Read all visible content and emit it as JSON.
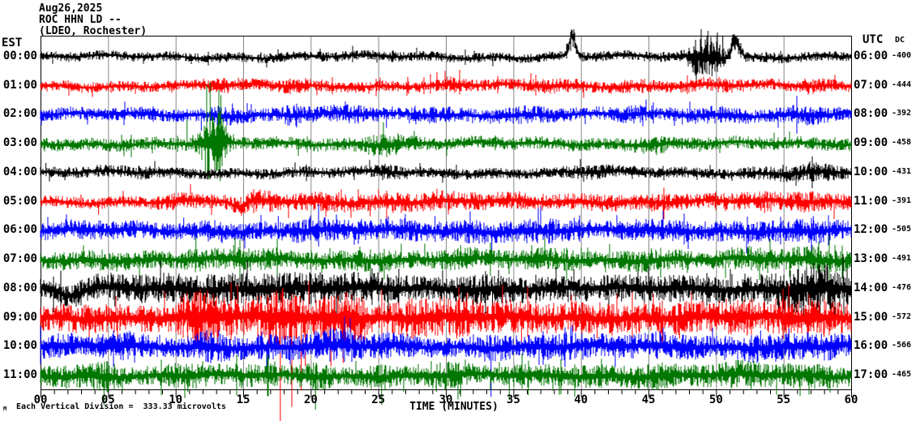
{
  "header": {
    "date": "Aug26,2025",
    "station": "ROC HHN LD --",
    "location": "(LDEO, Rochester)"
  },
  "axes": {
    "left_label": "EST",
    "right_label": "UTC",
    "dc_label": "DC",
    "x_title": "TIME (MINUTES)",
    "x_ticks": [
      "00",
      "05",
      "10",
      "15",
      "20",
      "25",
      "30",
      "35",
      "40",
      "45",
      "50",
      "55",
      "60"
    ]
  },
  "footer": {
    "scale_note": "Each Vertical Division =  333.33 microvolts",
    "corner_mark": "M"
  },
  "colors": {
    "trace_cycle": [
      "#000000",
      "#ff0000",
      "#0000ff",
      "#007700"
    ],
    "grid": "#888888",
    "frame": "#000000",
    "text": "#000000"
  },
  "chart_data": {
    "type": "line",
    "kind": "helicorder-seismogram",
    "title": "ROC HHN LD -- (LDEO, Rochester) Aug26,2025",
    "xlabel": "TIME (MINUTES)",
    "x_range_minutes": [
      0,
      60
    ],
    "minutes_per_row": 60,
    "vertical_division_microvolts": 333.33,
    "rows": [
      {
        "est": "00:00",
        "utc": "06:00",
        "dc": "-400",
        "color_index": 0,
        "base": 5,
        "seed": 11,
        "bursts": [
          [
            39.3,
            9,
            0.25
          ],
          [
            48.6,
            13,
            0.5
          ],
          [
            49.7,
            15,
            0.6
          ],
          [
            51.5,
            7,
            0.3
          ]
        ],
        "bumps": [
          [
            39.35,
            -26,
            0.22
          ],
          [
            51.45,
            -24,
            0.28
          ]
        ],
        "spikes": [
          [
            48.9,
            34,
            -1
          ],
          [
            49.4,
            32,
            -1
          ],
          [
            50.1,
            30,
            -1
          ],
          [
            49.7,
            24,
            1
          ],
          [
            50.5,
            26,
            -1
          ]
        ]
      },
      {
        "est": "01:00",
        "utc": "07:00",
        "dc": "-444",
        "color_index": 1,
        "base": 5.5,
        "seed": 22,
        "bursts": [
          [
            13.5,
            3,
            1
          ],
          [
            18.8,
            3,
            1.2
          ],
          [
            30.5,
            3,
            1
          ],
          [
            38,
            2.5,
            1.5
          ],
          [
            44,
            2.5,
            1
          ],
          [
            50,
            2.5,
            1.5
          ],
          [
            57,
            3,
            1
          ]
        ],
        "bumps": [],
        "spikes": [
          [
            2.1,
            12,
            1
          ],
          [
            24.3,
            10,
            1
          ]
        ]
      },
      {
        "est": "02:00",
        "utc": "08:00",
        "dc": "-392",
        "color_index": 2,
        "base": 6.5,
        "seed": 33,
        "bursts": [
          [
            13.6,
            4,
            0.8
          ],
          [
            18.7,
            4,
            0.9
          ],
          [
            23,
            3,
            1.5
          ],
          [
            29.5,
            3,
            1
          ],
          [
            36,
            3,
            1.5
          ],
          [
            44,
            3,
            1
          ],
          [
            50,
            3,
            1.5
          ],
          [
            56.5,
            4,
            1.2
          ]
        ],
        "bumps": [],
        "spikes": [
          [
            11.9,
            20,
            1
          ],
          [
            14.2,
            14,
            -1
          ],
          [
            25.6,
            16,
            1
          ],
          [
            47.5,
            12,
            1
          ]
        ]
      },
      {
        "est": "03:00",
        "utc": "09:00",
        "dc": "-458",
        "color_index": 3,
        "base": 6.5,
        "seed": 44,
        "bursts": [
          [
            12.35,
            22,
            0.28
          ],
          [
            13.25,
            24,
            0.3
          ],
          [
            12.8,
            10,
            0.8
          ],
          [
            25.6,
            6,
            1.2
          ],
          [
            45.5,
            4,
            0.8
          ]
        ],
        "bumps": [],
        "spikes": [
          [
            12.3,
            72,
            -1
          ],
          [
            12.55,
            76,
            -1
          ],
          [
            13.2,
            66,
            -1
          ],
          [
            13.35,
            60,
            -1
          ],
          [
            12.4,
            44,
            1
          ],
          [
            13.3,
            46,
            1
          ],
          [
            12.2,
            38,
            1
          ],
          [
            10.85,
            30,
            -1
          ],
          [
            45.6,
            14,
            1
          ]
        ]
      },
      {
        "est": "04:00",
        "utc": "10:00",
        "dc": "-431",
        "color_index": 0,
        "base": 5.5,
        "seed": 55,
        "bursts": [
          [
            7,
            1.5,
            2
          ],
          [
            25.5,
            3,
            0.8
          ],
          [
            41,
            2,
            1.5
          ],
          [
            55.5,
            3,
            2
          ],
          [
            58,
            3,
            1
          ]
        ],
        "bumps": [],
        "spikes": [
          [
            0.4,
            12,
            -1
          ],
          [
            25.5,
            10,
            -1
          ]
        ]
      },
      {
        "est": "05:00",
        "utc": "11:00",
        "dc": "-391",
        "color_index": 1,
        "base": 6,
        "seed": 66,
        "bursts": [
          [
            10.5,
            3,
            1.5
          ],
          [
            16,
            6,
            1.2
          ],
          [
            21,
            4,
            2
          ],
          [
            26,
            4,
            1.5
          ],
          [
            30.5,
            4,
            2
          ],
          [
            36,
            3,
            2
          ],
          [
            41,
            3,
            1.5
          ],
          [
            46,
            3,
            2
          ],
          [
            52,
            3,
            1.5
          ],
          [
            57,
            5,
            2
          ]
        ],
        "bumps": [
          [
            14.7,
            8,
            0.5
          ]
        ],
        "spikes": [
          [
            4.3,
            16,
            1
          ],
          [
            24.4,
            18,
            1
          ],
          [
            26.1,
            14,
            1
          ],
          [
            41.6,
            12,
            1
          ],
          [
            53.6,
            14,
            1
          ]
        ]
      },
      {
        "est": "06:00",
        "utc": "12:00",
        "dc": "-505",
        "color_index": 2,
        "base": 8.5,
        "seed": 77,
        "bursts": [
          [
            3,
            2,
            2
          ],
          [
            13,
            3,
            1
          ],
          [
            20.5,
            5,
            1.5
          ],
          [
            27,
            3,
            2
          ],
          [
            32,
            4,
            1
          ],
          [
            37,
            5,
            2
          ],
          [
            46,
            3,
            2
          ],
          [
            52,
            3,
            2
          ],
          [
            57,
            4,
            1.5
          ]
        ],
        "bumps": [],
        "spikes": [
          [
            10.6,
            16,
            -1
          ],
          [
            17.6,
            18,
            -1
          ],
          [
            21.9,
            20,
            -1
          ],
          [
            25.6,
            14,
            -1
          ],
          [
            29.2,
            18,
            -1
          ],
          [
            31.8,
            24,
            -1
          ],
          [
            33.4,
            30,
            1
          ],
          [
            39.5,
            16,
            -1
          ],
          [
            57.2,
            18,
            -1
          ]
        ]
      },
      {
        "est": "07:00",
        "utc": "13:00",
        "dc": "-491",
        "color_index": 3,
        "base": 8.5,
        "seed": 88,
        "bursts": [
          [
            5,
            2,
            2
          ],
          [
            11.5,
            4,
            0.5
          ],
          [
            15.5,
            4,
            2
          ],
          [
            24,
            3,
            2
          ],
          [
            31,
            4,
            1
          ],
          [
            38,
            3,
            2
          ],
          [
            45,
            3,
            1.5
          ],
          [
            52.5,
            4,
            1.5
          ],
          [
            57.5,
            6,
            1.5
          ]
        ],
        "bumps": [],
        "spikes": [
          [
            11.5,
            28,
            -1
          ],
          [
            14.3,
            18,
            -1
          ],
          [
            31.1,
            18,
            -1
          ],
          [
            33.3,
            20,
            1
          ],
          [
            45.2,
            14,
            -1
          ],
          [
            52.6,
            16,
            -1
          ],
          [
            57.6,
            22,
            -1
          ],
          [
            58.8,
            18,
            -1
          ]
        ]
      },
      {
        "est": "08:00",
        "utc": "14:00",
        "dc": "-476",
        "color_index": 0,
        "base": 11,
        "seed": 99,
        "bursts": [
          [
            6,
            3,
            3
          ],
          [
            12,
            4,
            3
          ],
          [
            18,
            5,
            3
          ],
          [
            24,
            4,
            3
          ],
          [
            33,
            4,
            2
          ],
          [
            40,
            2,
            3
          ],
          [
            48,
            3,
            3
          ],
          [
            55,
            5,
            1.5
          ],
          [
            57.5,
            12,
            1.8
          ]
        ],
        "bumps": [
          [
            2.2,
            9,
            0.8
          ]
        ],
        "spikes": [
          [
            2.0,
            20,
            1
          ],
          [
            5.5,
            22,
            1
          ],
          [
            17.5,
            24,
            1
          ],
          [
            26.5,
            20,
            1
          ],
          [
            33.45,
            52,
            1
          ],
          [
            43,
            16,
            1
          ],
          [
            53.6,
            34,
            1
          ],
          [
            54.6,
            30,
            1
          ],
          [
            56.5,
            36,
            1
          ],
          [
            57.7,
            40,
            1
          ],
          [
            58.8,
            34,
            1
          ],
          [
            59.4,
            42,
            -1
          ],
          [
            58.2,
            30,
            -1
          ]
        ]
      },
      {
        "est": "09:00",
        "utc": "15:00",
        "dc": "-572",
        "color_index": 1,
        "base": 12,
        "seed": 110,
        "bursts": [
          [
            4,
            3,
            3
          ],
          [
            11.8,
            14,
            1.2
          ],
          [
            14,
            6,
            2
          ],
          [
            17.8,
            18,
            1.2
          ],
          [
            22.5,
            16,
            1.5
          ],
          [
            27.5,
            8,
            1
          ],
          [
            30.5,
            8,
            1.5
          ],
          [
            35,
            5,
            2
          ],
          [
            41,
            5,
            2
          ],
          [
            47,
            5,
            2
          ],
          [
            52,
            5,
            2
          ],
          [
            57,
            8,
            2
          ]
        ],
        "bumps": [],
        "spikes": [
          [
            10.9,
            30,
            1
          ],
          [
            11.9,
            44,
            1
          ],
          [
            12.4,
            40,
            1
          ],
          [
            13.1,
            36,
            1
          ],
          [
            16.9,
            40,
            1
          ],
          [
            17.75,
            130,
            1
          ],
          [
            18.6,
            110,
            1
          ],
          [
            19.3,
            90,
            1
          ],
          [
            19.6,
            60,
            1
          ],
          [
            21.5,
            60,
            1
          ],
          [
            22.4,
            56,
            1
          ],
          [
            23.3,
            50,
            1
          ],
          [
            24.0,
            40,
            1
          ],
          [
            27.6,
            30,
            1
          ],
          [
            30.8,
            26,
            1
          ],
          [
            35.6,
            30,
            1
          ],
          [
            41.2,
            26,
            1
          ],
          [
            44.1,
            20,
            1
          ],
          [
            47.3,
            26,
            1
          ],
          [
            52.3,
            22,
            1
          ],
          [
            55.2,
            20,
            1
          ],
          [
            58,
            24,
            1
          ],
          [
            12.1,
            26,
            -1
          ],
          [
            17.9,
            30,
            -1
          ],
          [
            22,
            24,
            -1
          ]
        ]
      },
      {
        "est": "10:00",
        "utc": "16:00",
        "dc": "-566",
        "color_index": 2,
        "base": 10,
        "seed": 121,
        "bursts": [
          [
            2,
            3,
            2
          ],
          [
            6.3,
            5,
            1
          ],
          [
            12.5,
            6,
            1
          ],
          [
            17,
            3,
            2
          ],
          [
            21.8,
            7,
            1.5
          ],
          [
            26,
            4,
            1
          ],
          [
            33.5,
            4,
            1
          ],
          [
            39,
            4,
            2
          ],
          [
            46,
            4,
            2
          ],
          [
            54,
            5,
            2
          ],
          [
            58,
            4,
            1.5
          ]
        ],
        "bumps": [],
        "spikes": [
          [
            6.4,
            18,
            -1
          ],
          [
            12.3,
            20,
            -1
          ],
          [
            21.7,
            22,
            -1
          ],
          [
            22.6,
            18,
            -1
          ],
          [
            26.1,
            16,
            -1
          ],
          [
            33.35,
            62,
            1
          ],
          [
            38.9,
            18,
            -1
          ],
          [
            45.9,
            16,
            -1
          ],
          [
            53.3,
            20,
            -1
          ],
          [
            55.4,
            22,
            -1
          ],
          [
            57.8,
            16,
            -1
          ]
        ]
      },
      {
        "est": "11:00",
        "utc": "17:00",
        "dc": "-465",
        "color_index": 3,
        "base": 9,
        "seed": 132,
        "bursts": [
          [
            2,
            3,
            2
          ],
          [
            4.8,
            6,
            0.8
          ],
          [
            11,
            5,
            1.5
          ],
          [
            16,
            3,
            2
          ],
          [
            20.3,
            6,
            0.8
          ],
          [
            25.2,
            5,
            0.8
          ],
          [
            30,
            5,
            1.5
          ],
          [
            36,
            4,
            1
          ],
          [
            41,
            3,
            2
          ],
          [
            45.5,
            5,
            1.2
          ],
          [
            50,
            3,
            2
          ],
          [
            52.5,
            4,
            1
          ],
          [
            57,
            5,
            1.5
          ]
        ],
        "bumps": [],
        "spikes": [
          [
            4.7,
            36,
            1
          ],
          [
            10.9,
            20,
            1
          ],
          [
            14.9,
            16,
            1
          ],
          [
            20.35,
            42,
            1
          ],
          [
            25.25,
            36,
            1
          ],
          [
            29.3,
            20,
            1
          ],
          [
            31.1,
            26,
            1
          ],
          [
            34.7,
            30,
            1
          ],
          [
            36.1,
            24,
            1
          ],
          [
            45.6,
            18,
            1
          ],
          [
            52.6,
            18,
            1
          ],
          [
            57.3,
            16,
            1
          ],
          [
            4.9,
            18,
            -1
          ],
          [
            20.2,
            16,
            -1
          ],
          [
            30.9,
            14,
            -1
          ]
        ]
      }
    ]
  }
}
